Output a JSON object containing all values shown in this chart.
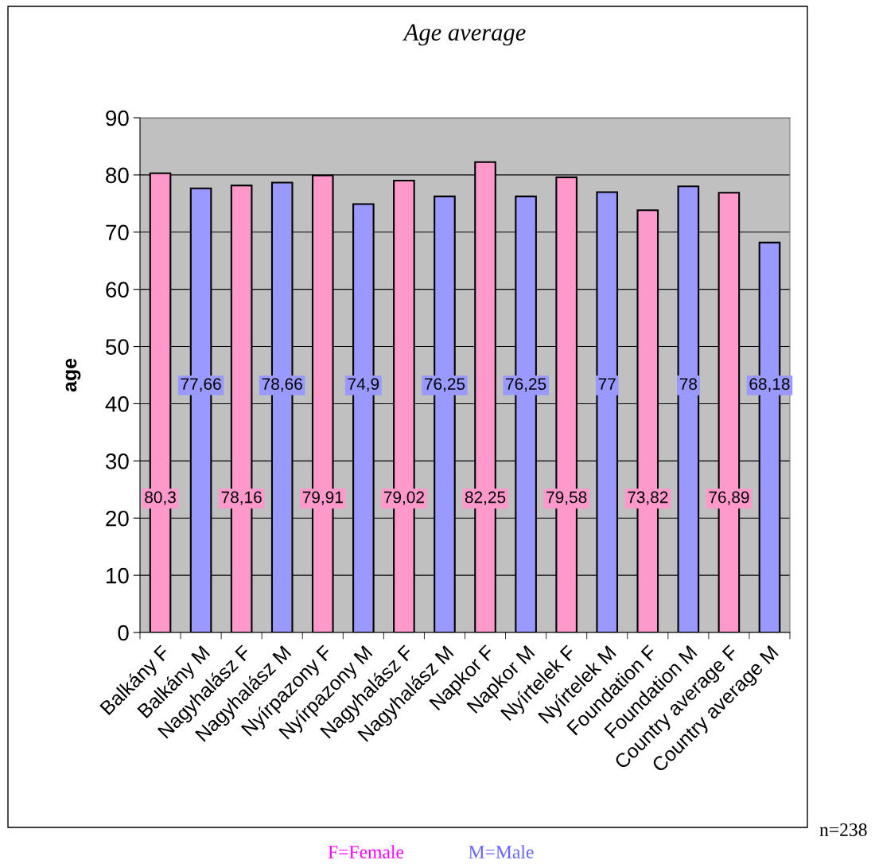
{
  "chart_data": {
    "type": "bar",
    "title": "Age average",
    "ylabel": "age",
    "categories": [
      "Balkány F",
      "Balkány M",
      "Nagyhalász F",
      "Nagyhalász M",
      "Nyírpazony F",
      "Nyírpazony M",
      "Nagyhalász F",
      "Nagyhalász M",
      "Napkor F",
      "Napkor M",
      "Nyírtelek F",
      "Nyírtelek M",
      "Foundation F",
      "Foundation M",
      "Country average F",
      "Country average M"
    ],
    "values": [
      80.3,
      77.66,
      78.16,
      78.66,
      79.91,
      74.9,
      79.02,
      76.25,
      82.25,
      76.25,
      79.58,
      77,
      73.82,
      78,
      76.89,
      68.18
    ],
    "colors": [
      "#ff99cc",
      "#9999ff",
      "#ff99cc",
      "#9999ff",
      "#ff99cc",
      "#9999ff",
      "#ff99cc",
      "#9999ff",
      "#ff99cc",
      "#9999ff",
      "#ff99cc",
      "#9999ff",
      "#ff99cc",
      "#9999ff",
      "#ff99cc",
      "#9999ff"
    ],
    "value_labels": [
      "80,3",
      "77,66",
      "78,16",
      "78,66",
      "79,91",
      "74,9",
      "79,02",
      "76,25",
      "82,25",
      "76,25",
      "79,58",
      "77",
      "73,82",
      "78",
      "76,89",
      "68,18"
    ],
    "ylim": [
      0,
      90
    ],
    "yticks": [
      0,
      10,
      20,
      30,
      40,
      50,
      60,
      70,
      80,
      90
    ],
    "grid": "y",
    "legend": false,
    "annotations": [
      "n=238",
      "F=Female",
      "M=Male"
    ]
  }
}
